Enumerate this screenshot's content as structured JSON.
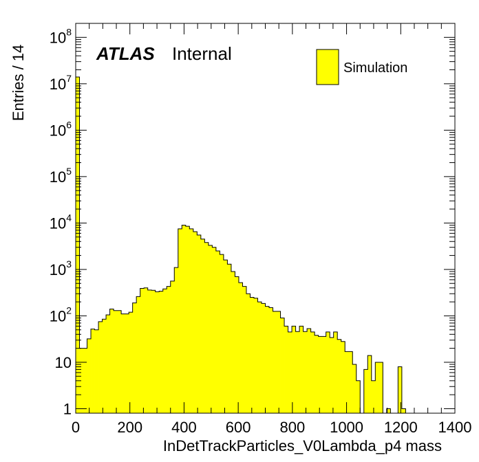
{
  "chart_data": {
    "type": "bar",
    "histogram": true,
    "xlabel": "InDetTrackParticles_V0Lambda_p4 mass",
    "ylabel": "Entries / 14",
    "xlim": [
      0,
      1400
    ],
    "ylim": [
      0.8,
      200000000
    ],
    "yscale": "log",
    "fill_color": "#ffff00",
    "line_color": "#000000",
    "label_main": "ATLAS",
    "label_sub": "Internal",
    "legend": {
      "entries": [
        "Simulation"
      ],
      "position": "top-right"
    },
    "x_ticks": [
      "0",
      "200",
      "400",
      "600",
      "800",
      "1000",
      "1200",
      "1400"
    ],
    "x_tick_values": [
      0,
      200,
      400,
      600,
      800,
      1000,
      1200,
      1400
    ],
    "y_ticks": [
      {
        "value": 1,
        "base": "1",
        "exp": ""
      },
      {
        "value": 10,
        "base": "10",
        "exp": ""
      },
      {
        "value": 100,
        "base": "10",
        "exp": "2"
      },
      {
        "value": 1000,
        "base": "10",
        "exp": "3"
      },
      {
        "value": 10000,
        "base": "10",
        "exp": "4"
      },
      {
        "value": 100000,
        "base": "10",
        "exp": "5"
      },
      {
        "value": 1000000,
        "base": "10",
        "exp": "6"
      },
      {
        "value": 10000000,
        "base": "10",
        "exp": "7"
      },
      {
        "value": 100000000,
        "base": "10",
        "exp": "8"
      }
    ],
    "bin_width": 14,
    "x_start": 0,
    "values": [
      14000000,
      20,
      20,
      32,
      52,
      50,
      75,
      85,
      105,
      140,
      130,
      130,
      110,
      110,
      120,
      190,
      260,
      390,
      400,
      360,
      355,
      330,
      340,
      380,
      430,
      560,
      1100,
      7500,
      9000,
      8500,
      7500,
      6500,
      5500,
      4500,
      3800,
      3300,
      3000,
      2500,
      2100,
      1600,
      1300,
      900,
      700,
      520,
      430,
      300,
      250,
      240,
      200,
      185,
      160,
      150,
      125,
      125,
      90,
      60,
      45,
      60,
      46,
      60,
      46,
      53,
      45,
      38,
      36,
      36,
      45,
      34,
      45,
      31,
      28,
      17,
      17,
      9,
      4,
      0,
      7,
      14,
      4,
      10,
      10,
      0,
      1,
      0,
      0,
      8,
      1,
      0,
      0,
      0,
      0,
      0,
      0,
      0,
      0,
      0,
      0,
      0,
      0,
      0
    ]
  }
}
